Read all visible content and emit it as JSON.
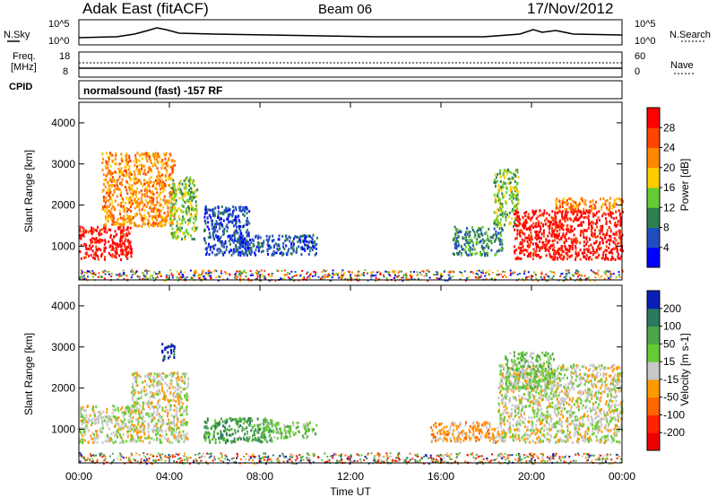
{
  "header": {
    "title": "Adak East (fitACF)",
    "beam": "Beam 06",
    "date": "17/Nov/2012"
  },
  "top_panels": {
    "nsky_label": "N.Sky",
    "nsky_ticks": [
      "10^5",
      "10^0"
    ],
    "nsearch_label": "N.Search",
    "nsearch_ticks": [
      "10^5",
      "10^0"
    ],
    "freq_label_line1": "Freq.",
    "freq_label_line2": "[MHz]",
    "freq_ticks": [
      "18",
      "8"
    ],
    "nave_label": "Nave",
    "nave_ticks": [
      "60",
      "0"
    ],
    "cpid_label": "CPID",
    "cpid_text": "normalsound (fast) -157 RF"
  },
  "chart_data": [
    {
      "type": "heatmap",
      "panel": "power",
      "ylabel": "Slant Range [km]",
      "yticks": [
        "1000",
        "2000",
        "3000",
        "4000"
      ],
      "ylim": [
        180,
        4500
      ],
      "xlim": [
        0,
        24
      ],
      "colorbar": {
        "label": "Power [dB]",
        "ticks": [
          "4",
          "8",
          "12",
          "16",
          "20",
          "24",
          "28"
        ],
        "colors": [
          "#0000ff",
          "#1f4fbf",
          "#2f7f4f",
          "#66cc33",
          "#ffcc00",
          "#ff8800",
          "#ff4400",
          "#ff0000"
        ]
      },
      "regions": [
        {
          "t0": 0.0,
          "t1": 2.3,
          "r0": 700,
          "r1": 1500,
          "level": 7
        },
        {
          "t0": 1.0,
          "t1": 4.2,
          "r0": 1500,
          "r1": 3300,
          "level": 5
        },
        {
          "t0": 4.0,
          "t1": 5.2,
          "r0": 1200,
          "r1": 2700,
          "level": 3
        },
        {
          "t0": 5.5,
          "t1": 7.5,
          "r0": 800,
          "r1": 2000,
          "level": 1
        },
        {
          "t0": 7.0,
          "t1": 10.5,
          "r0": 800,
          "r1": 1300,
          "level": 1
        },
        {
          "t0": 16.5,
          "t1": 18.7,
          "r0": 800,
          "r1": 1500,
          "level": 2
        },
        {
          "t0": 18.3,
          "t1": 19.4,
          "r0": 1500,
          "r1": 2900,
          "level": 3
        },
        {
          "t0": 19.2,
          "t1": 24.0,
          "r0": 700,
          "r1": 1900,
          "level": 7
        },
        {
          "t0": 21.0,
          "t1": 24.0,
          "r0": 1900,
          "r1": 2200,
          "level": 5
        }
      ]
    },
    {
      "type": "heatmap",
      "panel": "velocity",
      "ylabel": "Slant Range [km]",
      "yticks": [
        "1000",
        "2000",
        "3000",
        "4000"
      ],
      "ylim": [
        180,
        4500
      ],
      "xlim": [
        0,
        24
      ],
      "xlabel": "Time UT",
      "xticks": [
        "00:00",
        "04:00",
        "08:00",
        "12:00",
        "16:00",
        "20:00",
        "00:00"
      ],
      "colorbar": {
        "label": "Velocity [m s-1]",
        "ticks": [
          "200",
          "100",
          "50",
          "15",
          "-15",
          "-50",
          "-100",
          "-200"
        ],
        "colors": [
          "#0a1fb8",
          "#2a7a5f",
          "#4fa64a",
          "#66cc33",
          "#c8c8c8",
          "#ff9900",
          "#ff6600",
          "#ff2200",
          "#ee0000"
        ]
      },
      "regions": [
        {
          "t0": 0.0,
          "t1": 4.8,
          "r0": 700,
          "r1": 1600,
          "level": 4
        },
        {
          "t0": 2.3,
          "t1": 4.8,
          "r0": 1600,
          "r1": 2400,
          "level": 4
        },
        {
          "t0": 3.6,
          "t1": 4.2,
          "r0": 2700,
          "r1": 3100,
          "level": 0
        },
        {
          "t0": 5.5,
          "t1": 8.5,
          "r0": 700,
          "r1": 1300,
          "level": 2
        },
        {
          "t0": 8.0,
          "t1": 10.5,
          "r0": 800,
          "r1": 1200,
          "level": 3
        },
        {
          "t0": 15.5,
          "t1": 18.5,
          "r0": 700,
          "r1": 1200,
          "level": 5
        },
        {
          "t0": 18.5,
          "t1": 24.0,
          "r0": 700,
          "r1": 2600,
          "level": 4
        },
        {
          "t0": 18.8,
          "t1": 21.0,
          "r0": 2000,
          "r1": 2900,
          "level": 3
        }
      ]
    }
  ]
}
